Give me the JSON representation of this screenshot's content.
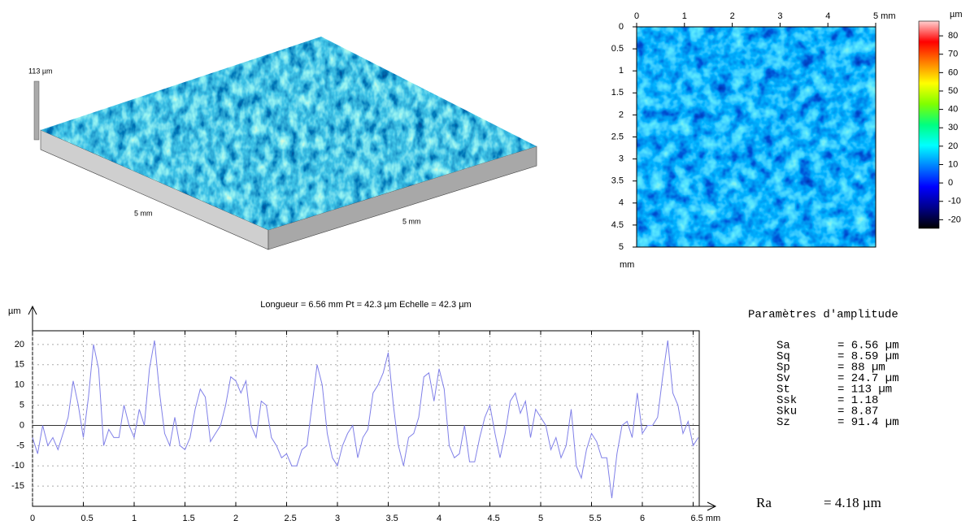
{
  "chart_data": [
    {
      "type": "surface3d",
      "z_label": "113 µm",
      "x_label": "5 mm",
      "y_label": "5 mm"
    },
    {
      "type": "heatmap",
      "xlim": [
        0,
        5
      ],
      "xticks": [
        0,
        1,
        2,
        3,
        4,
        {
          "value": 5,
          "label": "5 mm"
        }
      ],
      "ylim": [
        0,
        5
      ],
      "yticks": [
        0,
        0.5,
        1,
        1.5,
        2,
        2.5,
        3,
        3.5,
        4,
        4.5,
        5
      ],
      "y_label": "mm",
      "colorbar": {
        "label": "µm",
        "lim": [
          -24.7,
          88
        ],
        "ticks": [
          80,
          70,
          60,
          50,
          40,
          30,
          20,
          10,
          0,
          -10,
          -20
        ],
        "colors": [
          "#000000",
          "#00008b",
          "#0000ff",
          "#0080ff",
          "#00ffff",
          "#00ff80",
          "#80ff00",
          "#ffff00",
          "#ff8000",
          "#ff0000",
          "#ffd0d0"
        ]
      }
    },
    {
      "type": "line",
      "title": "Longueur = 6.56 mm  Pt = 42.3 µm  Echelle = 42.3 µm",
      "y_label": "µm",
      "color": "#8080e8",
      "xlim": [
        0,
        6.56
      ],
      "ylim": [
        -20,
        23.4
      ],
      "grid": true,
      "xticks": [
        0,
        0.5,
        1,
        1.5,
        2,
        2.5,
        3,
        3.5,
        4,
        4.5,
        5,
        5.5,
        6,
        {
          "value": 6.5,
          "label": "6.5 mm"
        }
      ],
      "yticks": [
        -15,
        -10,
        -5,
        0,
        5,
        10,
        15,
        20
      ],
      "x": [
        0,
        0.05,
        0.1,
        0.15,
        0.2,
        0.25,
        0.3,
        0.35,
        0.4,
        0.45,
        0.5,
        0.55,
        0.6,
        0.65,
        0.7,
        0.75,
        0.8,
        0.85,
        0.9,
        0.95,
        1,
        1.05,
        1.1,
        1.15,
        1.2,
        1.25,
        1.3,
        1.35,
        1.4,
        1.45,
        1.5,
        1.55,
        1.6,
        1.65,
        1.7,
        1.75,
        1.8,
        1.85,
        1.9,
        1.95,
        2,
        2.05,
        2.1,
        2.15,
        2.2,
        2.25,
        2.3,
        2.35,
        2.4,
        2.45,
        2.5,
        2.55,
        2.6,
        2.65,
        2.7,
        2.75,
        2.8,
        2.85,
        2.9,
        2.95,
        3,
        3.05,
        3.1,
        3.15,
        3.2,
        3.25,
        3.3,
        3.35,
        3.4,
        3.45,
        3.5,
        3.55,
        3.6,
        3.65,
        3.7,
        3.75,
        3.8,
        3.85,
        3.9,
        3.95,
        4,
        4.05,
        4.1,
        4.15,
        4.2,
        4.25,
        4.3,
        4.35,
        4.4,
        4.45,
        4.5,
        4.55,
        4.6,
        4.65,
        4.7,
        4.75,
        4.8,
        4.85,
        4.9,
        4.95,
        5,
        5.05,
        5.1,
        5.15,
        5.2,
        5.25,
        5.3,
        5.35,
        5.4,
        5.45,
        5.5,
        5.55,
        5.6,
        5.65,
        5.7,
        5.75,
        5.8,
        5.85,
        5.9,
        5.95,
        6,
        6.05,
        6.1,
        6.15,
        6.2,
        6.25,
        6.3,
        6.35,
        6.4,
        6.45,
        6.5,
        6.55
      ],
      "values": [
        -3,
        -7,
        0,
        -5,
        -3,
        -6,
        -2,
        2,
        11,
        5,
        -3,
        7,
        20,
        14,
        -5,
        -1,
        -3,
        -3,
        5,
        0,
        -3,
        4,
        0,
        14,
        21,
        8,
        -2,
        -5,
        2,
        -5,
        -6,
        -3,
        4,
        9,
        7,
        -4,
        -2,
        0,
        5,
        12,
        11,
        8,
        11,
        0,
        -3,
        6,
        5,
        -3,
        -5,
        -8,
        -7,
        -10,
        -10,
        -6,
        -5,
        5,
        15,
        10,
        -2,
        -8,
        -10,
        -5,
        -2,
        0,
        -8,
        -3,
        -1,
        8,
        10,
        13,
        18,
        5,
        -5,
        -10,
        -3,
        -2,
        2,
        12,
        13,
        6,
        14,
        9,
        -5,
        -8,
        -7,
        0,
        -9,
        -9,
        -3,
        2,
        5,
        -2,
        -8,
        -2,
        6,
        8,
        3,
        6,
        -3,
        4,
        2,
        0,
        -6,
        -3,
        -8,
        -5,
        4,
        -10,
        -13,
        -6,
        -2,
        -4,
        -8,
        -8,
        -18,
        -7,
        0,
        1,
        -3,
        8,
        -2,
        0,
        0,
        2,
        12,
        21,
        8,
        5,
        -2,
        1,
        -5,
        -3
      ]
    }
  ],
  "parameters": {
    "title": "Paramètres d'amplitude",
    "rows": [
      [
        "Sa",
        "= 6.56 µm"
      ],
      [
        "Sq",
        "= 8.59 µm"
      ],
      [
        "Sp",
        "= 88 µm"
      ],
      [
        "Sv",
        "= 24.7 µm"
      ],
      [
        "St",
        "= 113 µm"
      ],
      [
        "Ssk",
        "= 1.18"
      ],
      [
        "Sku",
        "= 8.87"
      ],
      [
        "Sz",
        "= 91.4 µm"
      ]
    ],
    "ra": [
      "Ra",
      "= 4.18 µm"
    ]
  }
}
